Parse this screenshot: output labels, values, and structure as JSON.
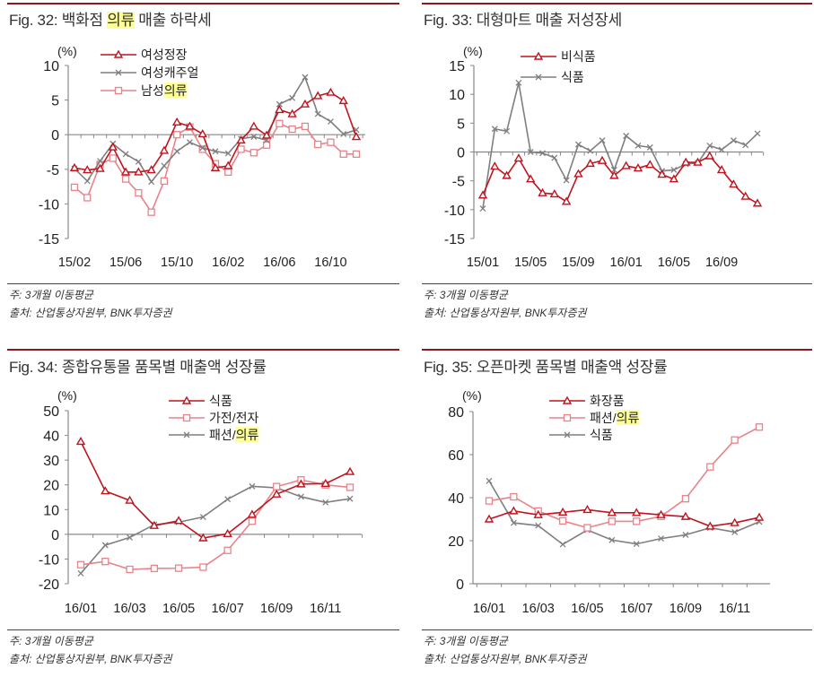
{
  "panels": [
    {
      "title_prefix": "Fig. 32: 백화점 ",
      "title_highlight": "의류",
      "title_suffix": " 매출 하락세",
      "note": "주: 3개월 이동평균",
      "source": "출처: 산업통상자원부, BNK투자증권"
    },
    {
      "title_prefix": "Fig. 33: 대형마트 매출 저성장세",
      "title_highlight": "",
      "title_suffix": "",
      "note": "주: 3개월 이동평균",
      "source": "출처: 산업통상자원부, BNK투자증권"
    },
    {
      "title_prefix": "Fig. 34: 종합유통몰 품목별 매출액 성장률",
      "title_highlight": "",
      "title_suffix": "",
      "note": "주: 3개월 이동평균",
      "source": "출처: 산업통상자원부, BNK투자증권"
    },
    {
      "title_prefix": "Fig. 35: 오픈마켓 품목별 매출액 성장률",
      "title_highlight": "",
      "title_suffix": "",
      "note": "주: 3개월 이동평균",
      "source": "출처: 산업통상자원부, BNK투자증권"
    }
  ],
  "colors": {
    "red": "#c0141e",
    "pink": "#e8838a",
    "gray": "#7f7f7f",
    "highlight": "#ffff99",
    "rule": "#8c1a1a"
  },
  "chart_data": [
    {
      "type": "line",
      "unit_label": "(%)",
      "ylim": [
        -15,
        10
      ],
      "yticks": [
        10,
        5,
        0,
        -5,
        -10,
        -15
      ],
      "categories": [
        "15/02",
        "15/03",
        "15/04",
        "15/05",
        "15/06",
        "15/07",
        "15/08",
        "15/09",
        "15/10",
        "15/11",
        "15/12",
        "16/01",
        "16/02",
        "16/03",
        "16/04",
        "16/05",
        "16/06",
        "16/07",
        "16/08",
        "16/09",
        "16/10",
        "16/11",
        "16/12"
      ],
      "xtick_labels": [
        "15/02",
        "15/06",
        "15/10",
        "16/02",
        "16/06",
        "16/10"
      ],
      "legend_placement": "top-left",
      "grid": false,
      "series": [
        {
          "name": "여성정장",
          "marker": "triangle",
          "color": "#c0141e",
          "values": [
            -4.8,
            -5.1,
            -4.9,
            -1.8,
            -5.4,
            -5.4,
            -5.1,
            -2.3,
            1.8,
            1.2,
            0.1,
            -4.8,
            -4.5,
            -0.8,
            1.2,
            -0.1,
            3.6,
            3.0,
            4.4,
            5.6,
            6.1,
            4.9,
            -0.3
          ]
        },
        {
          "name": "여성캐주얼",
          "marker": "x",
          "color": "#7f7f7f",
          "values": [
            -4.9,
            -6.7,
            -3.8,
            -1.3,
            -2.8,
            -3.9,
            -6.8,
            -4.5,
            -2.4,
            -1.1,
            -1.9,
            -2.4,
            -2.7,
            -0.6,
            -0.3,
            -0.8,
            4.4,
            5.3,
            8.3,
            3.0,
            1.9,
            0.1,
            0.7
          ]
        },
        {
          "name": "남성의류",
          "marker": "square",
          "color": "#e8838a",
          "values": [
            -7.6,
            -9.1,
            -4.3,
            -3.4,
            -6.4,
            -8.4,
            -11.2,
            -6.7,
            0.0,
            1.1,
            -2.1,
            -4.2,
            -5.4,
            -2.1,
            -2.6,
            -1.5,
            1.6,
            0.8,
            1.2,
            -1.4,
            -1.1,
            -2.8,
            -2.8
          ]
        }
      ]
    },
    {
      "type": "line",
      "unit_label": "(%)",
      "ylim": [
        -15,
        15
      ],
      "yticks": [
        15,
        10,
        5,
        0,
        -5,
        -10,
        -15
      ],
      "categories": [
        "15/01",
        "15/02",
        "15/03",
        "15/04",
        "15/05",
        "15/06",
        "15/07",
        "15/08",
        "15/09",
        "15/10",
        "15/11",
        "15/12",
        "16/01",
        "16/02",
        "16/03",
        "16/04",
        "16/05",
        "16/06",
        "16/07",
        "16/08",
        "16/09",
        "16/10",
        "16/11",
        "16/12"
      ],
      "xtick_labels": [
        "15/01",
        "15/05",
        "15/09",
        "16/01",
        "16/05",
        "16/09"
      ],
      "legend_placement": "top-left",
      "grid": false,
      "series": [
        {
          "name": "비식품",
          "marker": "triangle",
          "color": "#c0141e",
          "values": [
            -7.5,
            -2.5,
            -4.1,
            -1.1,
            -4.7,
            -7.1,
            -7.3,
            -8.6,
            -3.8,
            -2.0,
            -1.5,
            -4.1,
            -2.4,
            -2.8,
            -2.2,
            -3.9,
            -4.7,
            -1.8,
            -1.8,
            -0.7,
            -3.1,
            -5.6,
            -7.7,
            -8.9
          ]
        },
        {
          "name": "식품",
          "marker": "x",
          "color": "#7f7f7f",
          "values": [
            -9.8,
            4.0,
            3.6,
            12.0,
            0.0,
            -0.2,
            -1.0,
            -4.9,
            1.3,
            0.2,
            2.0,
            -3.1,
            2.8,
            1.1,
            0.8,
            -3.3,
            -3.1,
            -2.1,
            -1.9,
            1.1,
            0.4,
            2.0,
            1.2,
            3.2
          ]
        }
      ]
    },
    {
      "type": "line",
      "unit_label": "(%)",
      "ylim": [
        -20,
        50
      ],
      "yticks": [
        50,
        40,
        30,
        20,
        10,
        0,
        -10,
        -20
      ],
      "categories": [
        "16/01",
        "16/02",
        "16/03",
        "16/04",
        "16/05",
        "16/06",
        "16/07",
        "16/08",
        "16/09",
        "16/10",
        "16/11",
        "16/12"
      ],
      "xtick_labels": [
        "16/01",
        "16/03",
        "16/05",
        "16/07",
        "16/09",
        "16/11"
      ],
      "legend_placement": "top-center",
      "grid": false,
      "series": [
        {
          "name": "식품",
          "marker": "triangle",
          "color": "#c0141e",
          "values": [
            37.5,
            17.5,
            13.7,
            3.5,
            5.5,
            -1.5,
            0.2,
            8.0,
            16.2,
            20.3,
            20.5,
            25.3
          ]
        },
        {
          "name": "가전/전자",
          "marker": "square",
          "color": "#e8838a",
          "values": [
            -12.3,
            -11.0,
            -14.2,
            -13.8,
            -13.7,
            -13.3,
            -6.5,
            5.3,
            19.3,
            22.0,
            20.0,
            19.0
          ]
        },
        {
          "name": "패션/의류",
          "marker": "x",
          "color": "#7f7f7f",
          "values": [
            -15.8,
            -4.4,
            -1.3,
            3.9,
            4.9,
            7.0,
            14.2,
            19.4,
            18.8,
            15.2,
            12.9,
            14.4
          ]
        }
      ]
    },
    {
      "type": "line",
      "unit_label": "(%)",
      "ylim": [
        0,
        80
      ],
      "yticks": [
        80,
        60,
        40,
        20,
        0
      ],
      "categories": [
        "16/01",
        "16/02",
        "16/03",
        "16/04",
        "16/05",
        "16/06",
        "16/07",
        "16/08",
        "16/09",
        "16/10",
        "16/11",
        "16/12"
      ],
      "xtick_labels": [
        "16/01",
        "16/03",
        "16/05",
        "16/07",
        "16/09",
        "16/11"
      ],
      "legend_placement": "top-center",
      "grid": false,
      "series": [
        {
          "name": "화장품",
          "marker": "triangle",
          "color": "#c0141e",
          "values": [
            30.0,
            33.8,
            32.0,
            33.2,
            34.4,
            33.0,
            33.0,
            32.0,
            31.2,
            26.7,
            28.3,
            30.8
          ]
        },
        {
          "name": "패션/의류",
          "marker": "square",
          "color": "#e8838a",
          "values": [
            38.5,
            40.4,
            33.8,
            29.2,
            26.0,
            29.0,
            29.0,
            31.3,
            39.5,
            54.3,
            66.8,
            72.8
          ]
        },
        {
          "name": "식품",
          "marker": "x",
          "color": "#7f7f7f",
          "values": [
            47.8,
            28.3,
            27.0,
            18.3,
            25.0,
            20.3,
            18.5,
            21.0,
            22.7,
            26.0,
            24.0,
            28.8
          ]
        }
      ]
    }
  ]
}
